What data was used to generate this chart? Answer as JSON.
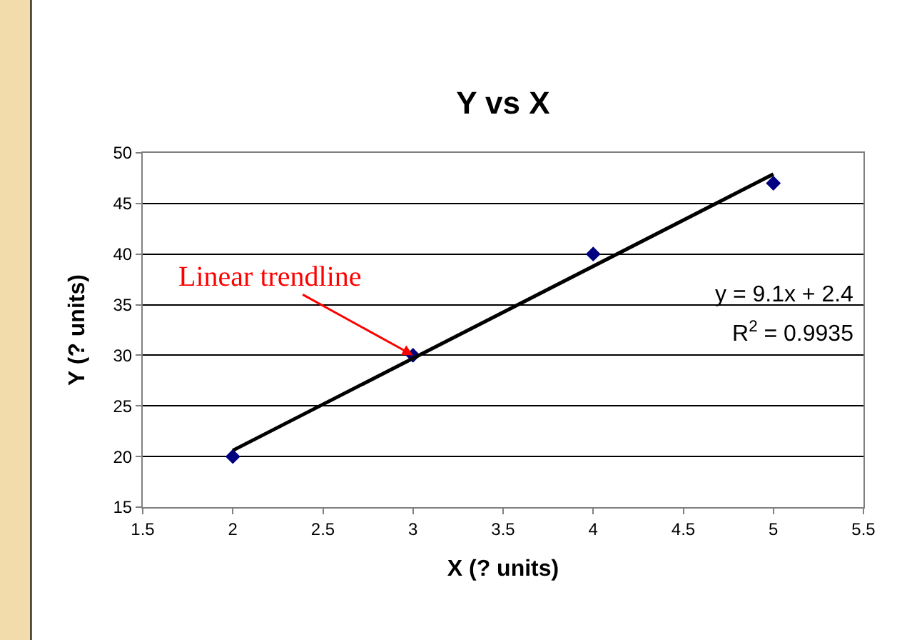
{
  "chart_data": {
    "type": "scatter",
    "title": "Y vs X",
    "xlabel": "X (? units)",
    "ylabel": "Y (? units)",
    "x": [
      2,
      3,
      4,
      5
    ],
    "series": [
      {
        "color": "#000080",
        "values": [
          20,
          30,
          40,
          47
        ],
        "marker": "diamond"
      },
      {
        "type": "line",
        "color": "#000000",
        "x": [
          2,
          5
        ],
        "values": [
          20.6,
          47.9
        ],
        "marker": "none",
        "line_style": "solid"
      }
    ],
    "xlim": [
      1.5,
      5.5
    ],
    "xticks": [
      1.5,
      2,
      2.5,
      3,
      3.5,
      4,
      4.5,
      5,
      5.5
    ],
    "ylim": [
      15,
      50
    ],
    "yticks": [
      15,
      20,
      25,
      30,
      35,
      40,
      45,
      50
    ],
    "grid": "y",
    "legend": false,
    "annotations": [
      {
        "text": "Linear trendline",
        "x": 3,
        "y": 30
      },
      "y = 9.1x + 2.4",
      "R$^{2}$ = 0.9935"
    ]
  }
}
